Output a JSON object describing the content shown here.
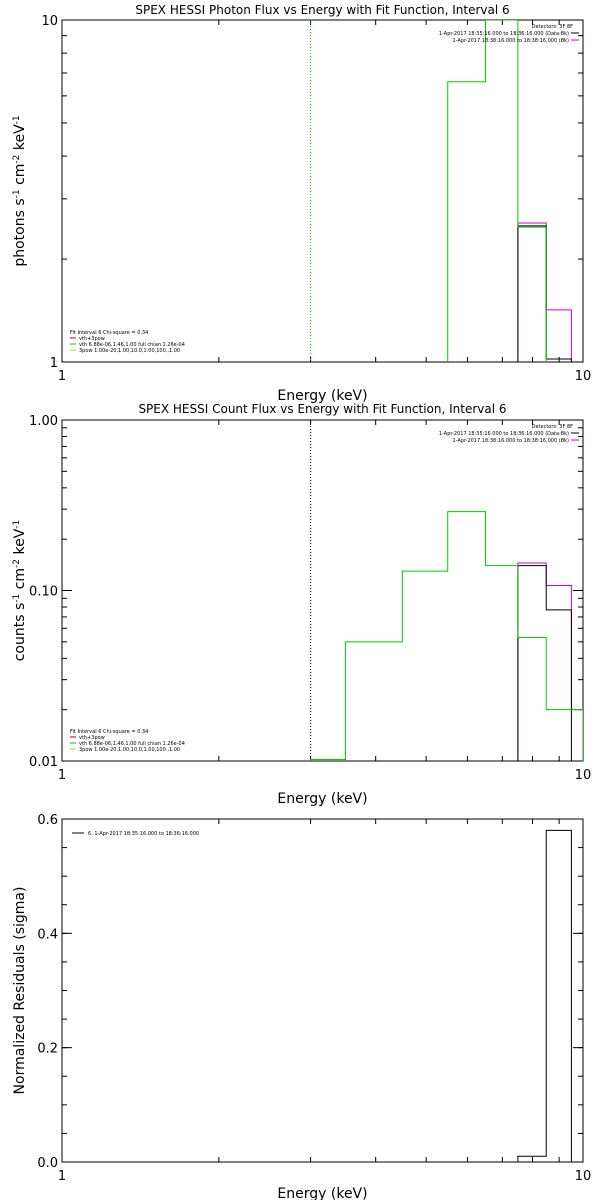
{
  "chart_data": [
    {
      "type": "line",
      "title": "SPEX HESSI Photon Flux vs Energy with Fit Function, Interval 6",
      "xlabel": "Energy (keV)",
      "ylabel_parts": [
        "photons s",
        "-1",
        " cm",
        "-2",
        " keV",
        "-1"
      ],
      "xlim": [
        1,
        10
      ],
      "ylim": [
        1,
        10
      ],
      "xscale": "log",
      "yscale": "log",
      "xticks": [
        1,
        10
      ],
      "xtick_labels": [
        "1",
        "10"
      ],
      "yticks": [
        1,
        10
      ],
      "ytick_labels": [
        "1",
        "10"
      ],
      "vline": {
        "x": 3,
        "color": "#00cc00",
        "style": "dotted"
      },
      "header": {
        "detectors": "Detectors: 3F 8F",
        "lines": [
          {
            "text": "1-Apr-2017 18:35:16.000 to 18:36:16.000 (Data-Bk)",
            "color": "#000000"
          },
          {
            "text": "1-Apr-2017 18:38:16.000 to 18:38:16.000 (Bk)",
            "color": "#cc00cc"
          }
        ]
      },
      "legend_title": "Fit Interval 6   Chi-square = 0.34",
      "legend": [
        {
          "text": "vth+3pow",
          "color": "#cc0000"
        },
        {
          "text": "vth 6.88e-06,1.46,1.00  full chian 1.26e-04",
          "color": "#00cc00"
        },
        {
          "text": "3pow 1.00e-20,1.00,10.0,1.00,100.,1.00",
          "color": "#cccc00"
        }
      ],
      "series": [
        {
          "role": "background",
          "color": "#cc00cc",
          "steps": [
            [
              7.5,
              8.5,
              2.55
            ],
            [
              8.5,
              9.5,
              1.42
            ]
          ]
        },
        {
          "role": "data",
          "color": "#000000",
          "steps": [
            [
              7.5,
              8.5,
              2.5
            ],
            [
              8.5,
              9.5,
              1.02
            ]
          ]
        },
        {
          "role": "model",
          "color": "#00cc00",
          "steps": [
            [
              5.5,
              6.5,
              6.6
            ],
            [
              6.5,
              7.5,
              10.0
            ],
            [
              7.5,
              8.5,
              2.48
            ]
          ]
        }
      ]
    },
    {
      "type": "line",
      "title": "SPEX HESSI Count Flux vs Energy with Fit Function, Interval 6",
      "xlabel": "Energy (keV)",
      "ylabel_parts": [
        "counts s",
        "-1",
        " cm",
        "-2",
        " keV",
        "-1"
      ],
      "xlim": [
        1,
        10
      ],
      "ylim": [
        0.01,
        1
      ],
      "xscale": "log",
      "yscale": "log",
      "xticks": [
        1,
        10
      ],
      "xtick_labels": [
        "1",
        "10"
      ],
      "yticks": [
        0.01,
        0.1,
        1
      ],
      "ytick_labels": [
        "0.01",
        "0.10",
        "1.00"
      ],
      "vline": {
        "x": 3,
        "color": "#000000",
        "style": "dotted"
      },
      "header": {
        "detectors": "Detectors: 3F 8F",
        "lines": [
          {
            "text": "1-Apr-2017 18:35:16.000 to 18:36:16.000 (Data-Bk)",
            "color": "#000000"
          },
          {
            "text": "1-Apr-2017 18:38:16.000 to 18:38:16.000 (Bk)",
            "color": "#cc00cc"
          }
        ]
      },
      "legend_title": "Fit Interval 6   Chi-square = 0.34",
      "legend": [
        {
          "text": "vth+3pow",
          "color": "#cc0000"
        },
        {
          "text": "vth 6.88e-06,1.46,1.00  full chian 1.26e-04",
          "color": "#00cc00"
        },
        {
          "text": "3pow 1.00e-20,1.00,10.0,1.00,100.,1.00",
          "color": "#cccc00"
        }
      ],
      "series": [
        {
          "role": "background",
          "color": "#cc00cc",
          "steps": [
            [
              7.5,
              8.5,
              0.145
            ],
            [
              8.5,
              9.5,
              0.107
            ],
            [
              9.5,
              10.0,
              0.02
            ]
          ]
        },
        {
          "role": "data",
          "color": "#000000",
          "steps": [
            [
              7.5,
              8.5,
              0.14
            ],
            [
              8.5,
              9.5,
              0.077
            ]
          ]
        },
        {
          "role": "model",
          "color": "#00cc00",
          "steps": [
            [
              3.0,
              3.5,
              0.0102
            ],
            [
              3.5,
              4.5,
              0.05
            ],
            [
              4.5,
              5.5,
              0.13
            ],
            [
              5.5,
              6.5,
              0.29
            ],
            [
              6.5,
              7.5,
              0.14
            ],
            [
              7.5,
              8.5,
              0.053
            ],
            [
              8.5,
              10.0,
              0.02
            ]
          ]
        }
      ]
    },
    {
      "type": "line",
      "title": "",
      "xlabel": "Energy (keV)",
      "ylabel": "Normalized Residuals (sigma)",
      "xlim": [
        1,
        10
      ],
      "ylim": [
        0,
        0.6
      ],
      "xscale": "log",
      "yscale": "linear",
      "xticks": [
        1,
        10
      ],
      "xtick_labels": [
        "1",
        "10"
      ],
      "yticks": [
        0,
        0.2,
        0.4,
        0.6
      ],
      "ytick_labels": [
        "0.0",
        "0.2",
        "0.4",
        "0.6"
      ],
      "legend": [
        {
          "text": "6. 1-Apr-2017 18:35:16.000 to 18:36:16.000",
          "color": "#000000"
        }
      ],
      "series": [
        {
          "role": "residuals",
          "color": "#000000",
          "steps": [
            [
              7.5,
              8.5,
              0.01
            ],
            [
              8.5,
              9.5,
              0.58
            ]
          ]
        }
      ]
    }
  ]
}
